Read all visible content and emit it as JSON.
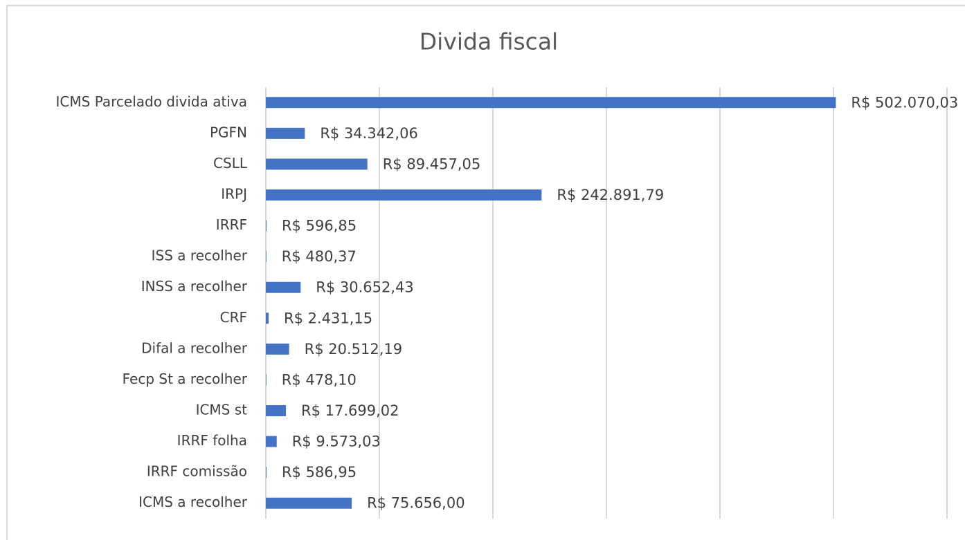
{
  "chart_data": {
    "type": "barh",
    "title": "Divida fiscal",
    "categories": [
      "ICMS Parcelado divida ativa",
      "PGFN",
      "CSLL",
      "IRPJ",
      "IRRF",
      "ISS a recolher",
      "INSS a recolher",
      "CRF",
      "Difal a recolher",
      "Fecp St a recolher",
      "ICMS st",
      "IRRF folha",
      "IRRF comissão",
      "ICMS a recolher"
    ],
    "values": [
      502070.03,
      34342.06,
      89457.05,
      242891.79,
      596.85,
      480.37,
      30652.43,
      2431.15,
      20512.19,
      478.1,
      17699.02,
      9573.03,
      586.95,
      75656.0
    ],
    "value_labels": [
      "R$ 502.070,03",
      "R$ 34.342,06",
      "R$ 89.457,05",
      "R$ 242.891,79",
      "R$ 596,85",
      "R$ 480,37",
      "R$ 30.652,43",
      "R$ 2.431,15",
      "R$ 20.512,19",
      "R$ 478,10",
      "R$ 17.699,02",
      "R$ 9.573,03",
      "R$ 586,95",
      "R$ 75.656,00"
    ],
    "color": "#4472c4",
    "xlim": [
      0,
      600000
    ],
    "xticks": [
      0,
      100000,
      200000,
      300000,
      400000,
      500000,
      600000
    ],
    "grid": true
  }
}
